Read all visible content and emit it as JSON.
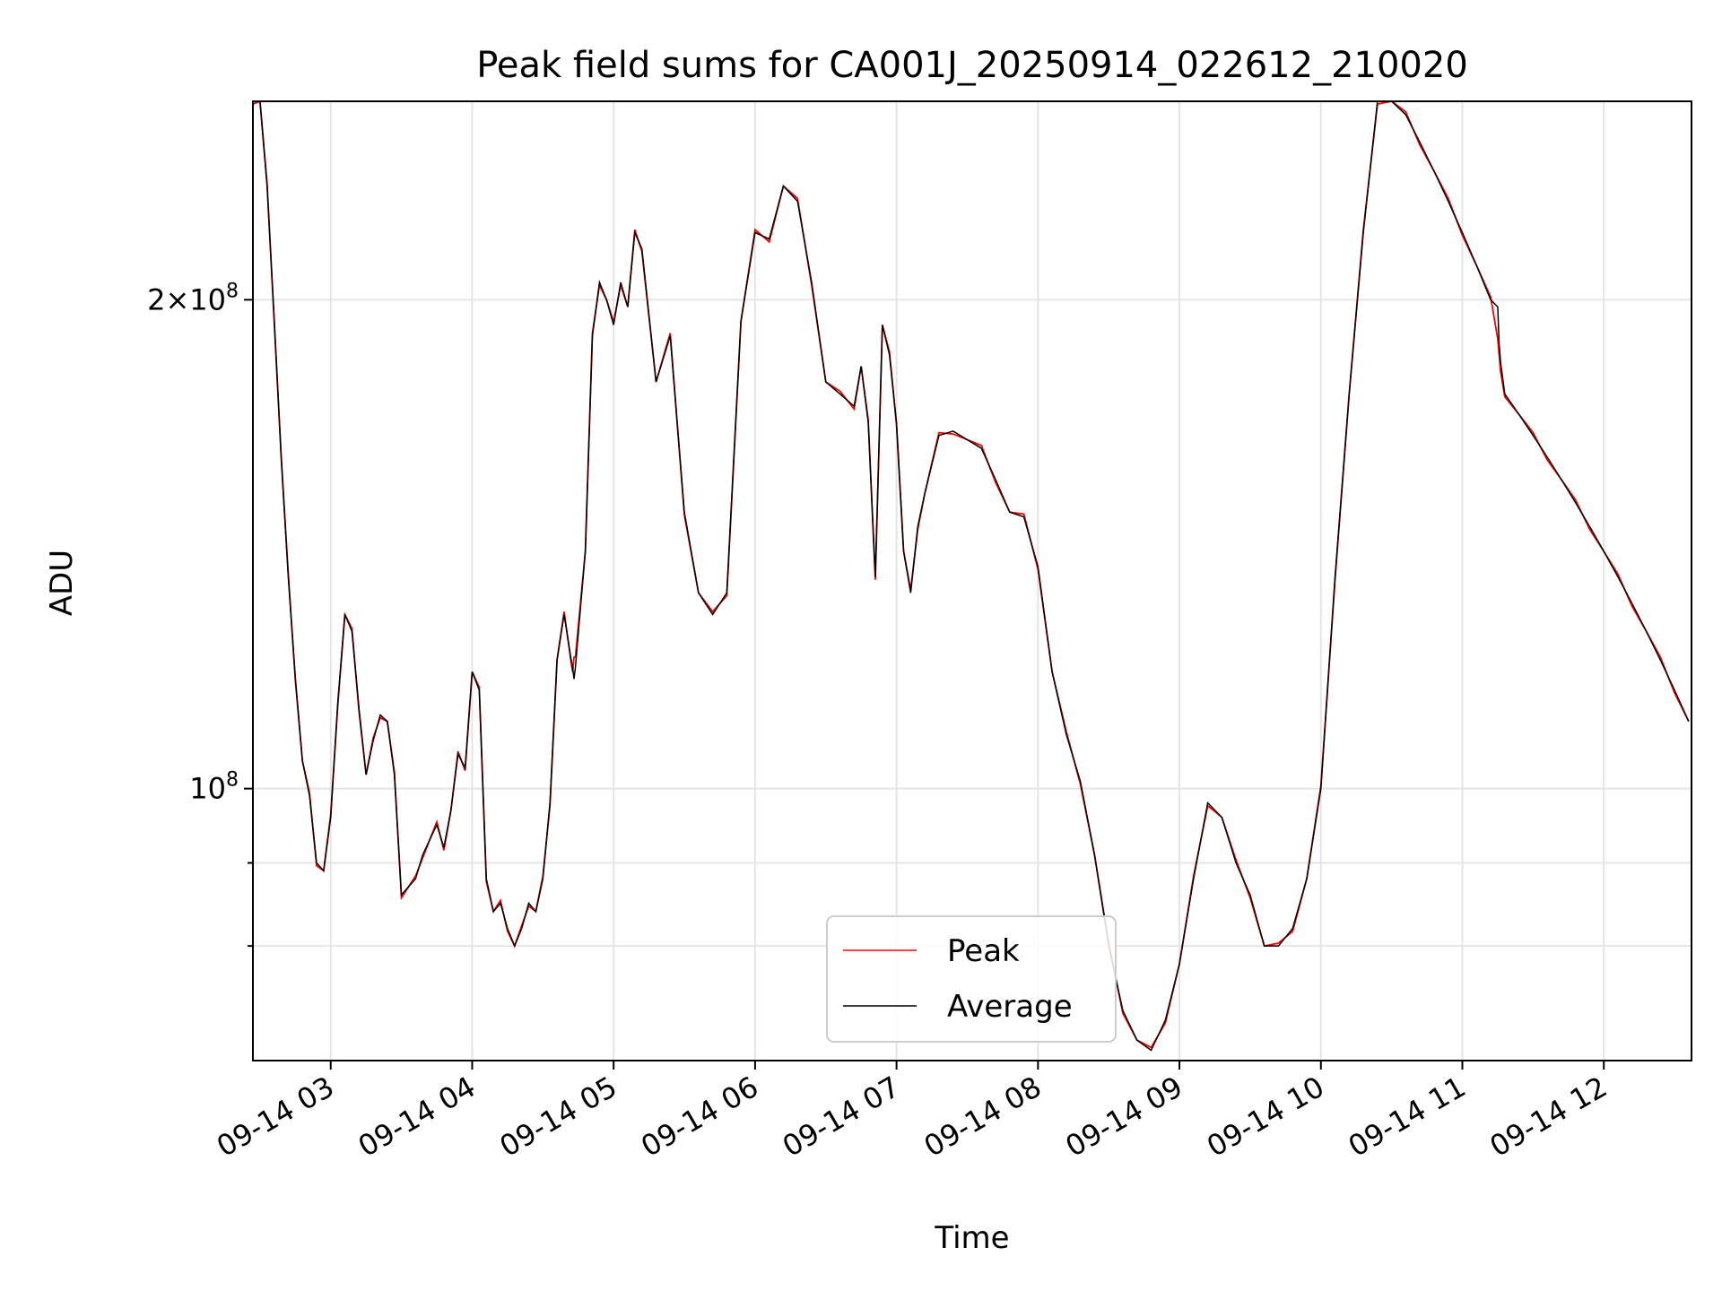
{
  "chart_data": {
    "type": "line",
    "title": "Peak field sums for CA001J_20250914_022612_210020",
    "xlabel": "Time",
    "ylabel": "ADU",
    "yscale": "log",
    "ylim": [
      68000000,
      265000000
    ],
    "grid": true,
    "legend_position": "bottom-center",
    "x_tick_labels": [
      "09-14 03",
      "09-14 04",
      "09-14 05",
      "09-14 06",
      "09-14 07",
      "09-14 08",
      "09-14 09",
      "09-14 10",
      "09-14 11",
      "09-14 12"
    ],
    "x_tick_hours": [
      3,
      4,
      5,
      6,
      7,
      8,
      9,
      10,
      11,
      12
    ],
    "xlim_hours": [
      2.45,
      12.62
    ],
    "y_tick_labels": [
      {
        "value": 200000000,
        "mantissa": "2",
        "exponent": "8",
        "major": true
      },
      {
        "value": 100000000,
        "mantissa": "",
        "exponent": "8",
        "major": true
      },
      {
        "value": 90000000,
        "major": false
      },
      {
        "value": 80000000,
        "major": false
      }
    ],
    "series": [
      {
        "name": "Peak",
        "color": "#ff0000",
        "x_hours": [
          2.45,
          2.5,
          2.55,
          2.6,
          2.65,
          2.7,
          2.75,
          2.8,
          2.85,
          2.9,
          2.95,
          3.0,
          3.05,
          3.1,
          3.15,
          3.2,
          3.25,
          3.3,
          3.35,
          3.4,
          3.45,
          3.5,
          3.55,
          3.6,
          3.65,
          3.7,
          3.75,
          3.8,
          3.85,
          3.9,
          3.95,
          4.0,
          4.05,
          4.1,
          4.15,
          4.2,
          4.25,
          4.3,
          4.35,
          4.4,
          4.45,
          4.5,
          4.55,
          4.6,
          4.65,
          4.7,
          4.71,
          4.72,
          4.73,
          4.8,
          4.85,
          4.9,
          4.95,
          5.0,
          5.05,
          5.1,
          5.15,
          5.2,
          5.3,
          5.4,
          5.5,
          5.6,
          5.7,
          5.8,
          5.9,
          6.0,
          6.1,
          6.2,
          6.3,
          6.4,
          6.5,
          6.6,
          6.7,
          6.75,
          6.8,
          6.85,
          6.9,
          6.95,
          7.0,
          7.05,
          7.1,
          7.15,
          7.2,
          7.3,
          7.4,
          7.5,
          7.6,
          7.7,
          7.8,
          7.9,
          8.0,
          8.1,
          8.2,
          8.3,
          8.4,
          8.5,
          8.6,
          8.7,
          8.8,
          8.9,
          9.0,
          9.1,
          9.2,
          9.3,
          9.4,
          9.5,
          9.6,
          9.7,
          9.8,
          9.9,
          10.0,
          10.1,
          10.2,
          10.3,
          10.4,
          10.5,
          10.6,
          10.7,
          10.8,
          10.9,
          11.0,
          11.1,
          11.2,
          11.25,
          11.26,
          11.27,
          11.3,
          11.4,
          11.5,
          11.6,
          11.7,
          11.8,
          11.9,
          12.0,
          12.1,
          12.2,
          12.3,
          12.4,
          12.5,
          12.6
        ],
        "values": [
          265000000,
          265000000,
          235000000,
          195000000,
          160000000,
          135000000,
          117000000,
          104000000,
          99000000,
          90000000,
          89000000,
          96000000,
          113000000,
          128000000,
          125000000,
          112000000,
          102000000,
          107000000,
          111000000,
          110000000,
          102000000,
          86000000,
          87000000,
          88000000,
          91000000,
          93000000,
          95000000,
          92000000,
          97000000,
          105000000,
          103000000,
          118000000,
          115000000,
          88000000,
          84000000,
          85000000,
          82000000,
          80000000,
          82000000,
          85000000,
          84000000,
          88000000,
          98000000,
          120000000,
          128000000,
          120000000,
          118000000,
          120000000,
          121000000,
          140000000,
          190000000,
          205000000,
          200000000,
          193000000,
          205000000,
          198000000,
          220000000,
          215000000,
          178000000,
          190000000,
          148000000,
          132000000,
          128000000,
          132000000,
          194000000,
          220000000,
          218000000,
          235000000,
          230000000,
          205000000,
          178000000,
          175000000,
          172000000,
          182000000,
          168000000,
          135000000,
          193000000,
          185000000,
          168000000,
          140000000,
          132000000,
          145000000,
          152000000,
          165000000,
          166000000,
          164000000,
          162000000,
          155000000,
          148000000,
          147000000,
          137000000,
          118000000,
          108000000,
          101000000,
          91000000,
          80000000,
          73000000,
          70000000,
          69000000,
          72000000,
          78000000,
          88000000,
          98000000,
          96000000,
          90000000,
          86000000,
          80000000,
          80000000,
          82000000,
          88000000,
          100000000,
          135000000,
          175000000,
          220000000,
          265000000,
          265000000,
          260000000,
          250000000,
          240000000,
          230000000,
          220000000,
          210000000,
          200000000,
          190000000,
          185000000,
          180000000,
          175000000,
          170000000,
          165000000,
          160000000,
          155000000,
          150000000,
          145000000,
          140000000,
          135000000,
          130000000,
          125000000,
          120000000,
          115000000,
          110000000
        ]
      },
      {
        "name": "Average",
        "color": "#000000"
      }
    ]
  }
}
